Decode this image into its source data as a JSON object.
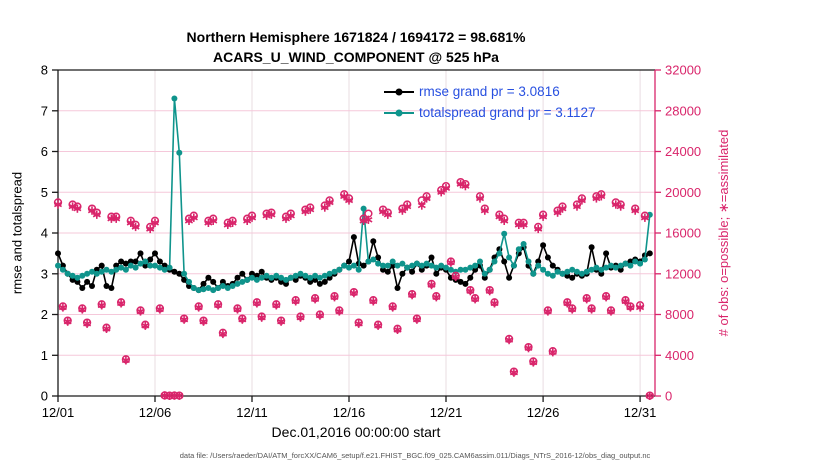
{
  "figure": {
    "footer": "data file: /Users/raeder/DAI/ATM_forcXX/CAM6_setup/f.e21.FHIST_BGC.f09_025.CAM6assim.011/Diags_NTrS_2016-12/obs_diag_output.nc"
  },
  "chart_data": {
    "type": "line",
    "title": "Northern Hemisphere 1671824 / 1694172 = 98.681%",
    "subtitle": "ACARS_U_WIND_COMPONENT @ 525 hPa",
    "xlabel": "Dec.01,2016 00:00:00 start",
    "ylabel_left": "rmse and totalspread",
    "ylabel_right": "# of obs: o=possible; ∗=assimilated",
    "grand_stats": {
      "rmse_grand_prior": 3.0816,
      "totalspread_grand_prior": 3.1127,
      "possible_total": 1694172,
      "assimilated_total": 1671824,
      "assimilated_pct": 98.681
    },
    "legend": [
      {
        "name": "rmse",
        "label": "rmse grand pr = 3.0816",
        "color": "#000000"
      },
      {
        "name": "totalspread",
        "label": "totalspread grand pr = 3.1127",
        "color": "#0f948c"
      }
    ],
    "colors": {
      "pink": "#d9256b",
      "teal": "#0f948c",
      "black": "#000000",
      "legend_text": "#2850e0",
      "grid_h": "#f5c8da",
      "grid_v": "#e9dde2",
      "axis": "#1a1a1a"
    },
    "xlim": [
      0,
      30.77
    ],
    "ylim_left": [
      0,
      8
    ],
    "ylim_right": [
      0,
      32000
    ],
    "yticks_left": [
      0,
      1,
      2,
      3,
      4,
      5,
      6,
      7,
      8
    ],
    "yticks_right": [
      0,
      4000,
      8000,
      12000,
      16000,
      20000,
      24000,
      28000,
      32000
    ],
    "xticks": {
      "t": [
        0,
        5,
        10,
        15,
        20,
        25,
        30
      ],
      "labels": [
        "12/01",
        "12/06",
        "12/11",
        "12/16",
        "12/21",
        "12/26",
        "12/31"
      ]
    },
    "time_days": {
      "start": 0,
      "step": 0.25,
      "note": "days since Dec 01 2016 00:00, 6-hourly"
    },
    "series": [
      {
        "name": "rmse",
        "axis": "left",
        "style": "line-dot",
        "color": "#000000",
        "values": [
          3.5,
          3.2,
          3.0,
          2.85,
          2.8,
          2.65,
          2.8,
          2.7,
          3.1,
          3.2,
          2.7,
          2.65,
          3.2,
          3.3,
          3.25,
          3.3,
          3.3,
          3.5,
          3.2,
          3.35,
          3.5,
          3.3,
          3.2,
          3.1,
          3.05,
          3.0,
          2.85,
          2.7,
          2.65,
          2.6,
          2.75,
          2.9,
          2.8,
          2.65,
          2.8,
          2.7,
          2.75,
          2.9,
          3.0,
          2.85,
          3.0,
          2.95,
          3.05,
          2.9,
          2.85,
          2.9,
          2.8,
          2.75,
          2.9,
          2.85,
          2.95,
          2.9,
          2.8,
          2.85,
          2.75,
          2.8,
          2.9,
          3.0,
          3.1,
          3.2,
          3.3,
          3.9,
          3.25,
          3.2,
          3.3,
          3.8,
          3.4,
          3.1,
          3.05,
          3.2,
          2.65,
          3.0,
          3.15,
          3.05,
          3.25,
          3.1,
          3.2,
          3.4,
          3.0,
          3.15,
          3.1,
          2.9,
          2.85,
          2.8,
          2.75,
          2.9,
          3.1,
          3.2,
          2.9,
          3.1,
          3.4,
          3.6,
          3.3,
          2.9,
          3.2,
          3.5,
          3.65,
          3.2,
          3.0,
          3.3,
          3.7,
          3.4,
          3.2,
          3.1,
          3.0,
          2.95,
          2.9,
          3.0,
          2.95,
          3.0,
          3.65,
          3.1,
          3.0,
          3.5,
          3.15,
          3.2,
          3.1,
          3.25,
          3.3,
          3.35,
          3.3,
          3.45,
          3.5
        ]
      },
      {
        "name": "totalspread",
        "axis": "left",
        "style": "line-dot",
        "color": "#0f948c",
        "values": [
          3.2,
          3.1,
          3.0,
          2.95,
          2.9,
          2.95,
          3.0,
          3.05,
          3.0,
          3.05,
          3.1,
          3.05,
          3.1,
          3.15,
          3.1,
          3.2,
          3.15,
          3.25,
          3.3,
          3.2,
          3.2,
          3.15,
          3.1,
          3.15,
          7.3,
          5.97,
          3.0,
          2.8,
          2.65,
          2.6,
          2.62,
          2.65,
          2.6,
          2.65,
          2.7,
          2.65,
          2.7,
          2.75,
          2.8,
          2.85,
          2.9,
          2.85,
          2.9,
          2.95,
          2.9,
          2.95,
          2.9,
          2.85,
          2.9,
          2.95,
          3.0,
          2.95,
          2.9,
          2.95,
          2.9,
          2.95,
          3.0,
          3.05,
          3.1,
          3.2,
          3.15,
          3.2,
          3.1,
          4.6,
          3.3,
          3.35,
          3.25,
          3.2,
          3.2,
          3.3,
          3.2,
          3.25,
          3.15,
          3.2,
          3.25,
          3.2,
          3.25,
          3.2,
          3.15,
          3.2,
          3.15,
          3.1,
          3.05,
          3.1,
          3.1,
          3.15,
          3.2,
          3.3,
          3.0,
          3.1,
          3.3,
          3.5,
          3.98,
          3.4,
          3.2,
          3.6,
          3.73,
          3.3,
          3.0,
          3.2,
          3.1,
          3.0,
          2.95,
          3.05,
          3.0,
          3.05,
          3.1,
          3.05,
          3.0,
          3.05,
          3.1,
          3.15,
          3.1,
          3.15,
          3.2,
          3.15,
          3.2,
          3.25,
          3.2,
          3.3,
          3.25,
          3.35,
          4.45
        ]
      },
      {
        "name": "possible",
        "axis": "right",
        "style": "open-circle",
        "color": "#d9256b",
        "values": [
          19000,
          8800,
          7400,
          18800,
          18600,
          8600,
          7200,
          18400,
          18000,
          9000,
          6700,
          17600,
          17600,
          9200,
          3600,
          17200,
          16800,
          8400,
          7000,
          16600,
          17200,
          8600,
          60,
          30,
          50,
          40,
          7600,
          17400,
          17700,
          8800,
          7400,
          17200,
          17400,
          9000,
          6200,
          17000,
          17200,
          8600,
          7600,
          17400,
          17700,
          9200,
          7800,
          17900,
          18000,
          9000,
          7400,
          17600,
          17900,
          9400,
          7800,
          18300,
          18500,
          9600,
          8000,
          18700,
          19200,
          9800,
          8400,
          19800,
          19400,
          10200,
          7200,
          17400,
          17900,
          9400,
          7000,
          18300,
          18000,
          8800,
          6600,
          18400,
          18800,
          10000,
          7600,
          19200,
          19600,
          11000,
          9800,
          20200,
          20600,
          13200,
          11800,
          21000,
          20800,
          10400,
          9600,
          19600,
          18400,
          10400,
          9200,
          17800,
          17400,
          5600,
          2400,
          17000,
          17000,
          4800,
          3400,
          16600,
          17800,
          8400,
          4400,
          18200,
          18600,
          9200,
          8600,
          18800,
          19400,
          9600,
          8600,
          19600,
          19800,
          9800,
          8400,
          19000,
          18800,
          9400,
          8800,
          18400,
          8900,
          17700,
          40
        ]
      },
      {
        "name": "assimilated",
        "axis": "right",
        "style": "asterisk",
        "color": "#d9256b",
        "values": [
          18800,
          8700,
          7300,
          18600,
          18400,
          8500,
          7100,
          18200,
          17800,
          8900,
          6600,
          17400,
          17400,
          9100,
          3500,
          17000,
          16600,
          8300,
          6900,
          16400,
          17000,
          8500,
          50,
          20,
          40,
          30,
          7500,
          17200,
          17500,
          8700,
          7300,
          17000,
          17200,
          8900,
          6100,
          16800,
          17000,
          8500,
          7500,
          17200,
          17500,
          9100,
          7700,
          17700,
          17800,
          8900,
          7300,
          17400,
          17700,
          9300,
          7700,
          18100,
          18300,
          9500,
          7900,
          18500,
          19000,
          9700,
          8300,
          19600,
          19200,
          10100,
          7100,
          17200,
          17300,
          9300,
          6900,
          18100,
          17800,
          8700,
          6500,
          18200,
          18600,
          9900,
          7500,
          18700,
          19400,
          10900,
          9700,
          20000,
          20400,
          13100,
          11700,
          20800,
          20600,
          10300,
          9500,
          19400,
          18200,
          10300,
          9100,
          17600,
          17200,
          5500,
          2300,
          16800,
          16800,
          4700,
          3300,
          16400,
          17600,
          8300,
          4300,
          18000,
          18400,
          9100,
          8500,
          18600,
          19200,
          9500,
          8500,
          19400,
          19600,
          9700,
          8300,
          18800,
          18600,
          9300,
          8700,
          18200,
          8700,
          17500,
          20
        ]
      }
    ]
  }
}
